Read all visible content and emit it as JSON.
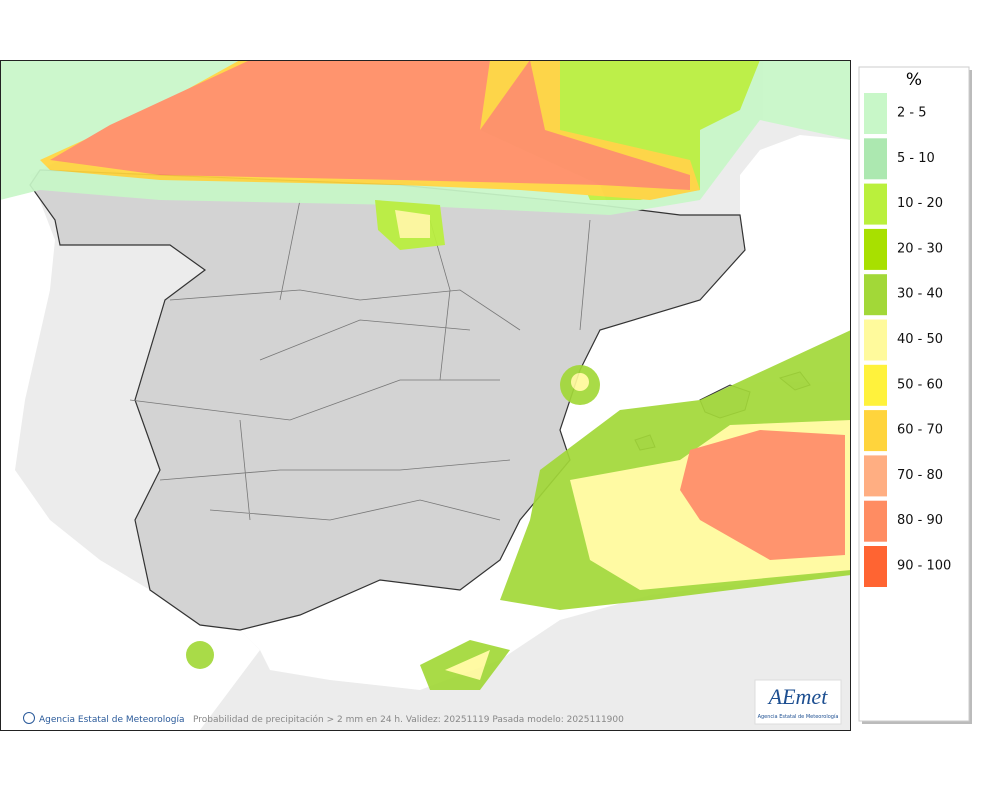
{
  "legend": {
    "title": "%",
    "items": [
      {
        "label": "2 - 5",
        "color": "#c8f7c8"
      },
      {
        "label": "5 - 10",
        "color": "#ace8b0"
      },
      {
        "label": "10 - 20",
        "color": "#baf03c"
      },
      {
        "label": "20 - 30",
        "color": "#a8e000"
      },
      {
        "label": "30 - 40",
        "color": "#a2d838"
      },
      {
        "label": "40 - 50",
        "color": "#fffa9c"
      },
      {
        "label": "50 - 60",
        "color": "#fff23c"
      },
      {
        "label": "60 - 70",
        "color": "#ffd43c"
      },
      {
        "label": "70 - 80",
        "color": "#ffae82"
      },
      {
        "label": "80 - 90",
        "color": "#ff8c62"
      },
      {
        "label": "90 - 100",
        "color": "#ff6432"
      }
    ]
  },
  "footer": {
    "credit": "Agencia Estatal de Meteorología",
    "caption": "Probabilidad de precipitación > 2 mm en 24 h. Validez: 20251119 Pasada modelo: 2025111900"
  },
  "logo": {
    "name": "AEmet",
    "subtitle": "Agencia Estatal de Meteorología"
  }
}
